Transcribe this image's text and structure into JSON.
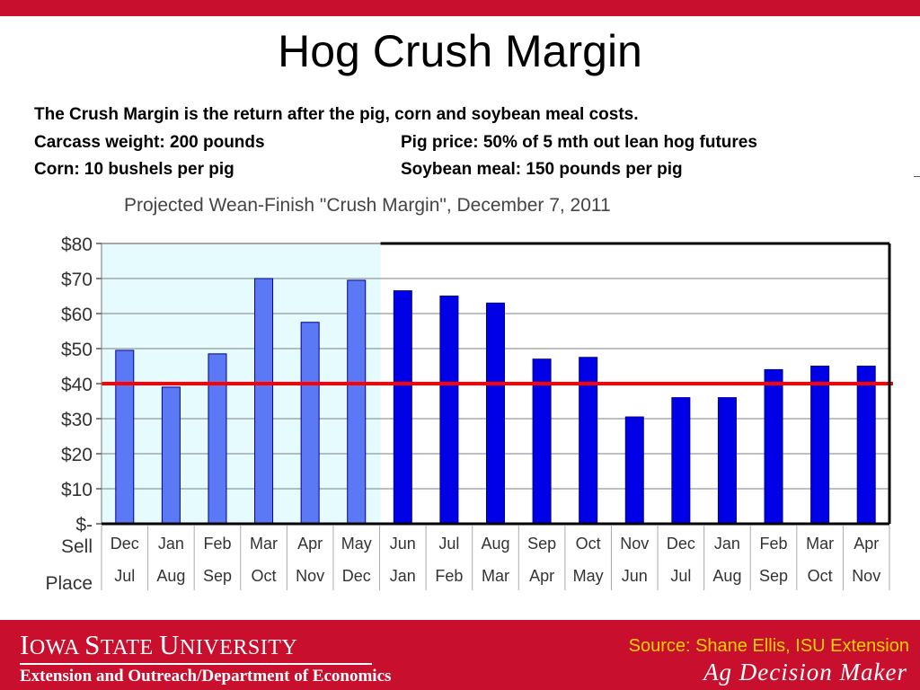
{
  "slide": {
    "title": "Hog Crush Margin",
    "line1": "The Crush Margin is the return after the pig, corn and soybean meal costs.",
    "line2_left": "Carcass weight:  200 pounds",
    "line2_right": "Pig price:  50% of 5 mth out lean hog futures",
    "line3_left": "Corn:  10 bushels per pig",
    "line3_right": "Soybean meal:  150 pounds per pig"
  },
  "footer": {
    "university_first": "I",
    "university_rest1": "OWA ",
    "university_s": "S",
    "university_rest2": "TATE ",
    "university_u": "U",
    "university_rest3": "NIVERSITY",
    "department": "Extension and Outreach/Department of Economics",
    "source": "Source: Shane Ellis, ISU Extension",
    "brand": "Ag Decision Maker"
  },
  "chart_data": {
    "type": "bar",
    "title": "Projected Wean-Finish \"Crush Margin\", December 7, 2011",
    "row_labels": [
      "Sell",
      "Place"
    ],
    "categories": [
      "Dec",
      "Jan",
      "Feb",
      "Mar",
      "Apr",
      "May",
      "Jun",
      "Jul",
      "Aug",
      "Sep",
      "Oct",
      "Nov",
      "Dec",
      "Jan",
      "Feb",
      "Mar",
      "Apr"
    ],
    "place_labels": [
      "Jul",
      "Aug",
      "Sep",
      "Oct",
      "Nov",
      "Dec",
      "Jan",
      "Feb",
      "Mar",
      "Apr",
      "May",
      "Jun",
      "Jul",
      "Aug",
      "Sep",
      "Oct",
      "Nov"
    ],
    "values": [
      49.5,
      39,
      48.5,
      70,
      57.5,
      69.5,
      66.5,
      65,
      63,
      47,
      47.5,
      30.5,
      36,
      36,
      44,
      45,
      45
    ],
    "ylim": [
      0,
      80
    ],
    "yticks": [
      "$-",
      "$10",
      "$20",
      "$30",
      "$40",
      "$50",
      "$60",
      "$70",
      "$80"
    ],
    "reference_line": 40,
    "shaded_count": 6,
    "grid": true,
    "colors": {
      "shaded_bar": "#5b78f5",
      "bar": "#0000e6",
      "bar_edge": "#00008b",
      "shaded_bg": "#e6fbfd",
      "reference": "#ff0000",
      "grid": "#7f7f7f"
    }
  }
}
